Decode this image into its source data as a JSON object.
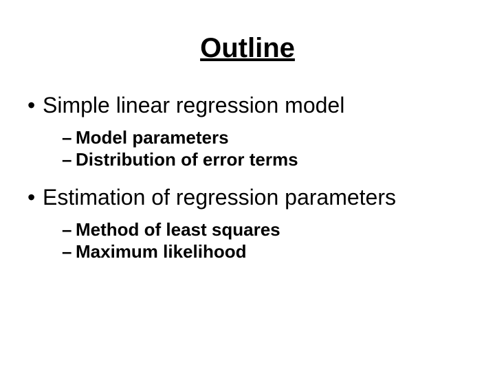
{
  "title": "Outline",
  "bullets": [
    {
      "text": "Simple linear regression model",
      "subs": [
        "Model parameters",
        "Distribution of error terms"
      ]
    },
    {
      "text": "Estimation of regression parameters",
      "subs": [
        "Method of least squares",
        "Maximum likelihood"
      ]
    }
  ],
  "style": {
    "background_color": "#ffffff",
    "text_color": "#000000",
    "title_fontsize": 40,
    "title_underline": true,
    "title_bold": true,
    "bullet_fontsize": 32,
    "bullet_marker": "•",
    "sub_fontsize": 26,
    "sub_bold": true,
    "sub_marker": "–",
    "font_family": "Arial"
  }
}
